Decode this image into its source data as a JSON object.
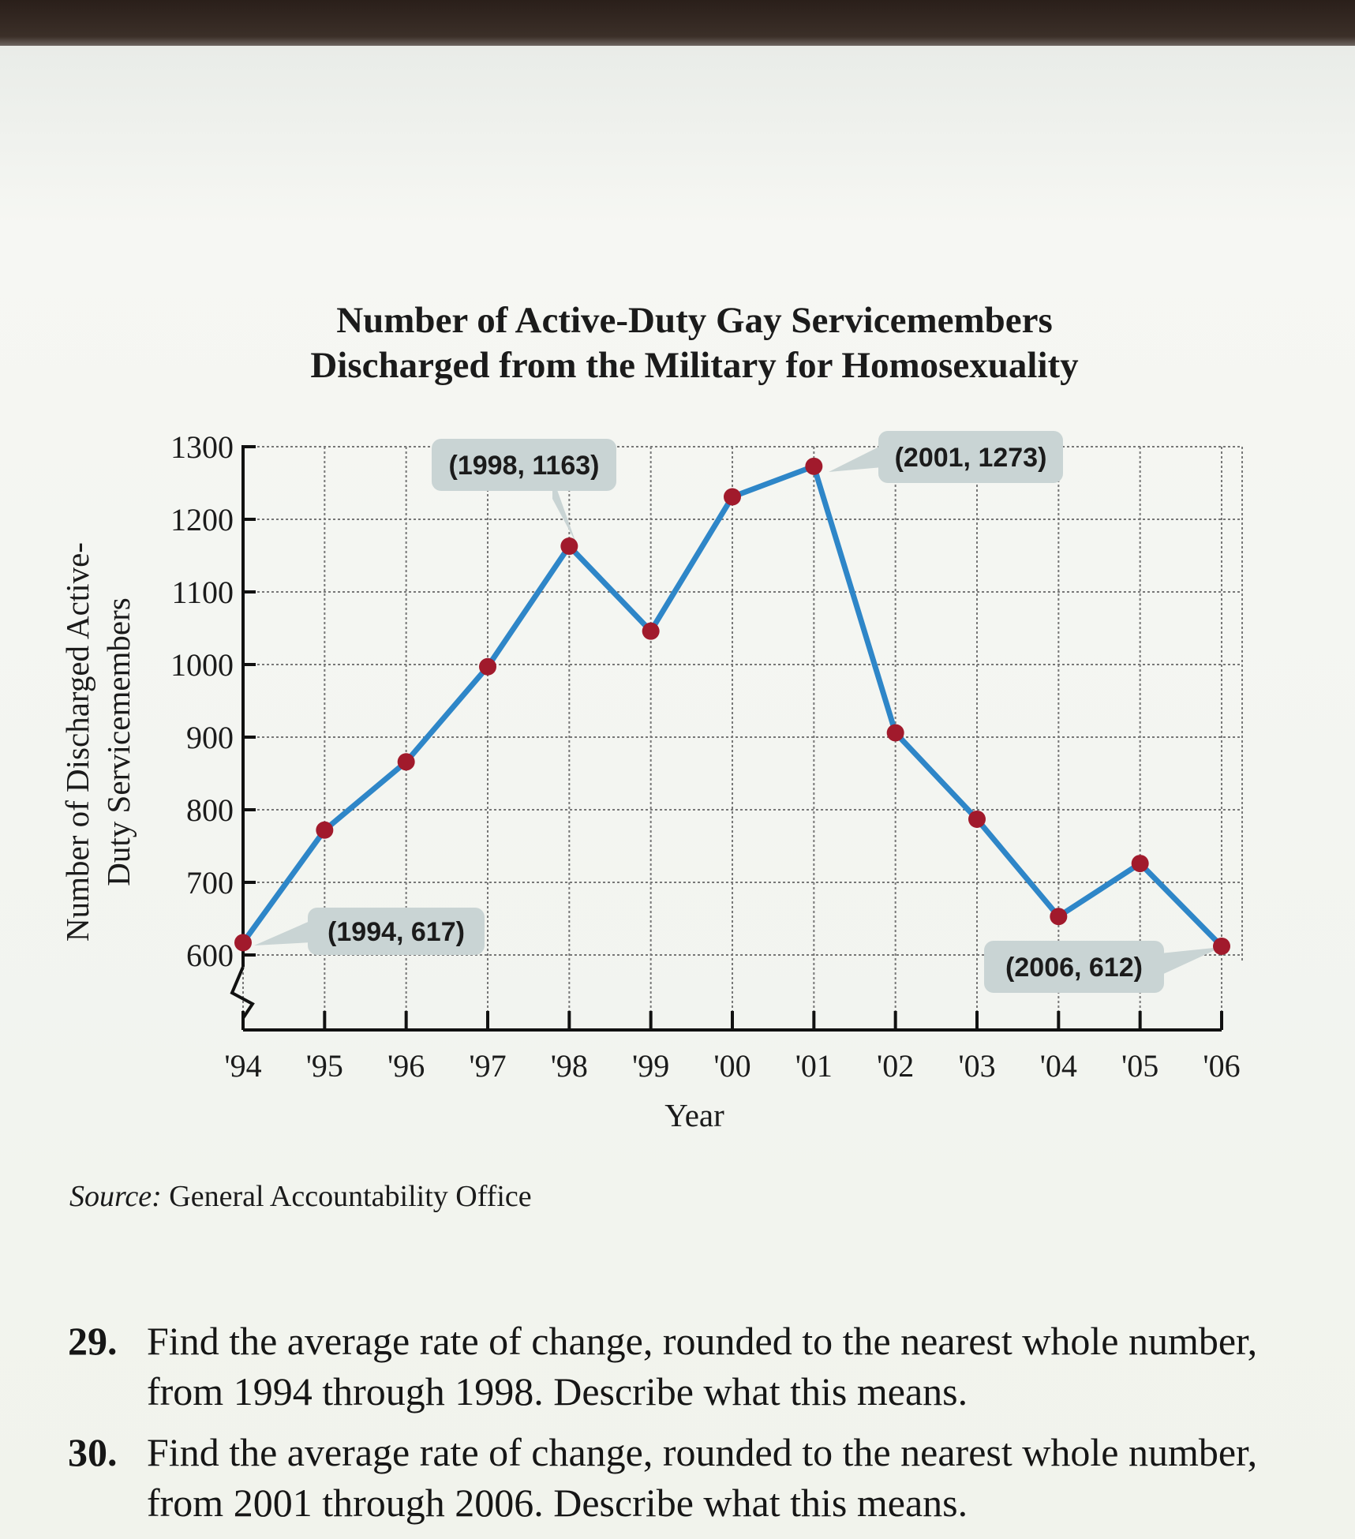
{
  "chart_data": {
    "type": "line",
    "title": [
      "Number of Active-Duty Gay Servicemembers",
      "Discharged from the Military for Homosexuality"
    ],
    "xlabel": "Year",
    "ylabel": [
      "Number of Discharged Active-",
      "Duty Servicemembers"
    ],
    "categories": [
      "'94",
      "'95",
      "'96",
      "'97",
      "'98",
      "'99",
      "'00",
      "'01",
      "'02",
      "'03",
      "'04",
      "'05",
      "'06"
    ],
    "years": [
      1994,
      1995,
      1996,
      1997,
      1998,
      1999,
      2000,
      2001,
      2002,
      2003,
      2004,
      2005,
      2006
    ],
    "values": [
      617,
      772,
      866,
      997,
      1163,
      1046,
      1231,
      1273,
      906,
      787,
      653,
      726,
      612
    ],
    "yticks": [
      "600",
      "700",
      "800",
      "900",
      "1000",
      "1100",
      "1200",
      "1300"
    ],
    "ylim": [
      600,
      1300
    ],
    "grid": true,
    "line_color": "#2e86c8",
    "marker_color": "#a11a2c",
    "annotations": [
      {
        "label": "(1994, 617)",
        "index": 0
      },
      {
        "label": "(1998, 1163)",
        "index": 4
      },
      {
        "label": "(2001, 1273)",
        "index": 7
      },
      {
        "label": "(2006, 612)",
        "index": 12
      }
    ]
  },
  "source": {
    "prefix": "Source:",
    "text": " General Accountability Office"
  },
  "questions": [
    {
      "number": "29.",
      "text": "Find the average rate of change, rounded to the nearest whole number, from 1994 through 1998. Describe what this means."
    },
    {
      "number": "30.",
      "text": "Find the average rate of change, rounded to the nearest whole number, from 2001 through 2006. Describe what this means."
    }
  ]
}
